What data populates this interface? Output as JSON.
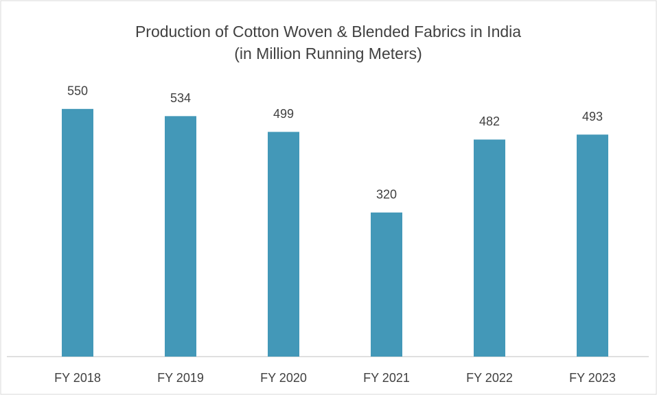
{
  "chart_data": {
    "type": "bar",
    "title": "Production of Cotton Woven & Blended Fabrics in India",
    "subtitle": "(in Million Running Meters)",
    "categories": [
      "FY 2018",
      "FY 2019",
      "FY 2020",
      "FY 2021",
      "FY 2022",
      "FY 2023"
    ],
    "values": [
      550,
      534,
      499,
      320,
      482,
      493
    ],
    "color": "#4398b8",
    "ylim": [
      0,
      600
    ]
  }
}
